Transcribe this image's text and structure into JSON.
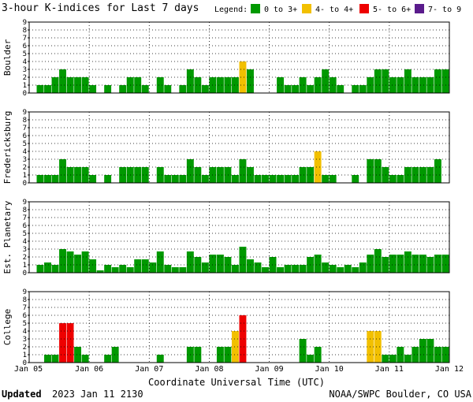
{
  "title": "3-hour K-indices for Last 7 days",
  "legend": {
    "label": "Legend:",
    "items": [
      {
        "label": "0 to 3+",
        "color": "#009900"
      },
      {
        "label": "4- to 4+",
        "color": "#f2c000"
      },
      {
        "label": "5- to 6+",
        "color": "#ee0000"
      },
      {
        "label": "7- to 9",
        "color": "#5a1b8c"
      }
    ]
  },
  "footer": {
    "updated_label": "Updated",
    "updated_value": "2023 Jan 11 2130",
    "credit": "NOAA/SWPC Boulder, CO USA"
  },
  "chart_data": {
    "type": "bar",
    "xlabel": "Coordinate Universal Time (UTC)",
    "x_ticks": [
      "Jan 05",
      "Jan 06",
      "Jan 07",
      "Jan 08",
      "Jan 09",
      "Jan 10",
      "Jan 11",
      "Jan 12"
    ],
    "ylim": [
      0,
      9
    ],
    "y_ticks": [
      0,
      1,
      2,
      3,
      4,
      5,
      6,
      7,
      8,
      9
    ],
    "intervals_per_day": 8,
    "grid": true,
    "panels": [
      {
        "name": "Boulder",
        "values": [
          0,
          1,
          1,
          2,
          3,
          2,
          2,
          2,
          1,
          0,
          1,
          0,
          1,
          2,
          2,
          1,
          0,
          2,
          1,
          0,
          1,
          3,
          2,
          1,
          2,
          2,
          2,
          2,
          4,
          3,
          0,
          0,
          0,
          2,
          1,
          1,
          2,
          1,
          2,
          3,
          2,
          1,
          0,
          1,
          1,
          2,
          3,
          3,
          2,
          2,
          3,
          2,
          2,
          2,
          3,
          3,
          0
        ]
      },
      {
        "name": "Fredericksburg",
        "values": [
          0,
          1,
          1,
          1,
          3,
          2,
          2,
          2,
          1,
          0,
          1,
          0,
          2,
          2,
          2,
          2,
          0,
          2,
          1,
          1,
          1,
          3,
          2,
          1,
          2,
          2,
          2,
          1,
          3,
          2,
          1,
          1,
          1,
          1,
          1,
          1,
          2,
          2,
          4,
          1,
          1,
          0,
          0,
          1,
          0,
          3,
          3,
          2,
          1,
          1,
          2,
          2,
          2,
          2,
          3,
          0,
          0
        ]
      },
      {
        "name": "Est. Planetary",
        "values": [
          0,
          1,
          1.3,
          1,
          3,
          2.7,
          2.3,
          2.7,
          1.7,
          0.3,
          1,
          0.7,
          1,
          0.7,
          1.7,
          1.7,
          1.3,
          2.7,
          1,
          0.7,
          0.7,
          2.7,
          2,
          1.3,
          2.3,
          2.3,
          2,
          1,
          3.3,
          1.7,
          1.3,
          0.7,
          2,
          0.7,
          1,
          1,
          1,
          2,
          2.3,
          1.3,
          1,
          0.7,
          1,
          0.7,
          1.3,
          2.3,
          3,
          2,
          2.3,
          2.3,
          2.7,
          2.3,
          2.3,
          2,
          2.3,
          2.3,
          0
        ]
      },
      {
        "name": "College",
        "values": [
          0,
          0,
          1,
          1,
          5,
          5,
          2,
          1,
          0,
          0,
          1,
          2,
          0,
          0,
          0,
          0,
          0,
          1,
          0,
          0,
          0,
          2,
          2,
          0,
          0,
          2,
          2,
          4,
          6,
          0,
          0,
          0,
          0,
          0,
          0,
          0,
          3,
          1,
          2,
          0,
          0,
          0,
          0,
          0,
          0,
          4,
          4,
          1,
          1,
          2,
          1,
          2,
          3,
          3,
          2,
          2,
          0
        ]
      }
    ]
  }
}
